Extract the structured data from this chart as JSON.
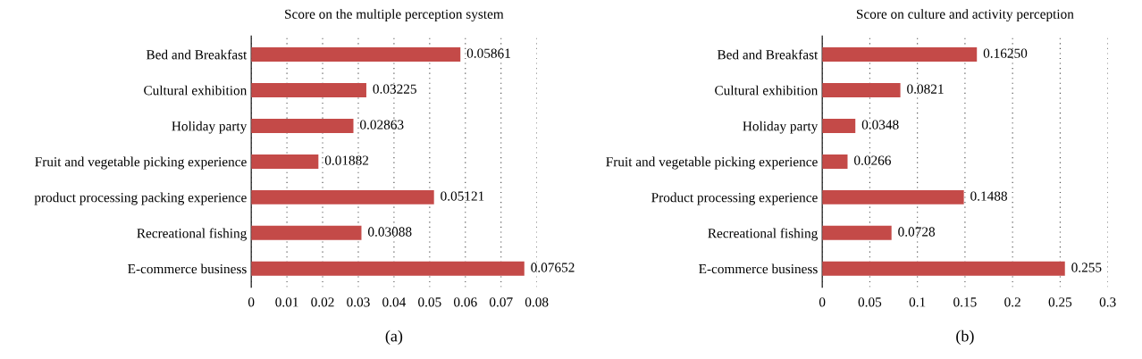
{
  "chart_data": [
    {
      "type": "bar",
      "orientation": "horizontal",
      "title": "Score on the multiple perception system",
      "categories": [
        "Bed and Breakfast",
        "Cultural exhibition",
        "Holiday party",
        "Fruit and vegetable picking experience",
        "product processing packing experience",
        "Recreational fishing",
        "E-commerce business"
      ],
      "values": [
        0.05861,
        0.03225,
        0.02863,
        0.01882,
        0.05121,
        0.03088,
        0.07652
      ],
      "value_labels": [
        "0.05861",
        "0.03225",
        "0.02863",
        "0.01882",
        "0.05121",
        "0.03088",
        "0.07652"
      ],
      "color": "#c44a48",
      "xlim": [
        0,
        0.08
      ],
      "xticks": [
        0,
        0.01,
        0.02,
        0.03,
        0.04,
        0.05,
        0.06,
        0.07,
        0.08
      ],
      "grid": "x",
      "annotations": [
        "(a)"
      ]
    },
    {
      "type": "bar",
      "orientation": "horizontal",
      "title": "Score on culture and activity perception",
      "categories": [
        "Bed and Breakfast",
        "Cultural exhibition",
        "Holiday party",
        "Fruit and vegetable picking experience",
        "Product processing experience",
        "Recreational fishing",
        "E-commerce business"
      ],
      "values": [
        0.1625,
        0.0821,
        0.0348,
        0.0266,
        0.1488,
        0.0728,
        0.255
      ],
      "value_labels": [
        "0.16250",
        "0.0821",
        "0.0348",
        "0.0266",
        "0.1488",
        "0.0728",
        "0.255"
      ],
      "color": "#c44a48",
      "xlim": [
        0,
        0.3
      ],
      "xticks": [
        0,
        0.05,
        {
          "value": 0.1,
          "label": "0.1"
        },
        0.15,
        {
          "value": 0.2,
          "label": "0.2"
        },
        0.25,
        {
          "value": 0.3,
          "label": "0.3"
        }
      ],
      "grid": "x",
      "annotations": [
        "(b)"
      ]
    }
  ]
}
